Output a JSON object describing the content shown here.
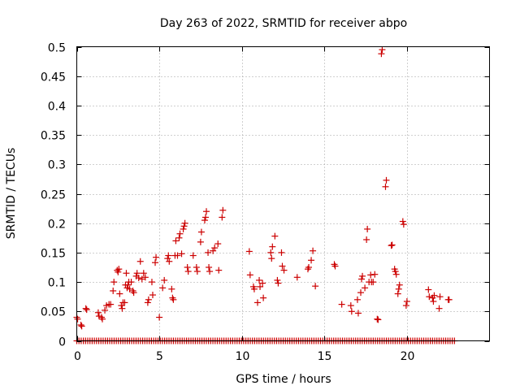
{
  "chart_data": {
    "type": "scatter",
    "title": "Day 263 of 2022, SRMTID for receiver abpo",
    "xlabel": "GPS time / hours",
    "ylabel": "SRMTID / TECUs",
    "xlim": [
      0,
      25
    ],
    "ylim": [
      0,
      0.5
    ],
    "grid": true,
    "marker": "+",
    "color": "#cc0000",
    "x_ticks": [
      0,
      5,
      10,
      15,
      20
    ],
    "x_tick_labels": [
      "0",
      "5",
      "10",
      "15",
      "20"
    ],
    "y_ticks": [
      0,
      0.05,
      0.1,
      0.15,
      0.2,
      0.25,
      0.3,
      0.35,
      0.4,
      0.45,
      0.5
    ],
    "y_tick_labels": [
      "0",
      "0.05",
      "0.1",
      "0.15",
      "0.2",
      "0.25",
      "0.3",
      "0.35",
      "0.4",
      "0.45",
      "0.5"
    ],
    "zero_baseline": {
      "x_start": 0.0,
      "x_end": 22.9,
      "step": 0.133,
      "y": 0
    },
    "points": [
      [
        0.0,
        0.04
      ],
      [
        0.05,
        0.037
      ],
      [
        0.25,
        0.027
      ],
      [
        0.3,
        0.025
      ],
      [
        0.55,
        0.055
      ],
      [
        0.6,
        0.053
      ],
      [
        1.3,
        0.048
      ],
      [
        1.35,
        0.042
      ],
      [
        1.5,
        0.04
      ],
      [
        1.55,
        0.037
      ],
      [
        1.7,
        0.052
      ],
      [
        1.8,
        0.06
      ],
      [
        1.95,
        0.062
      ],
      [
        2.05,
        0.062
      ],
      [
        2.2,
        0.085
      ],
      [
        2.25,
        0.1
      ],
      [
        2.45,
        0.12
      ],
      [
        2.5,
        0.117
      ],
      [
        2.55,
        0.122
      ],
      [
        2.6,
        0.08
      ],
      [
        2.7,
        0.06
      ],
      [
        2.75,
        0.055
      ],
      [
        2.8,
        0.065
      ],
      [
        2.9,
        0.065
      ],
      [
        2.95,
        0.095
      ],
      [
        3.0,
        0.115
      ],
      [
        3.05,
        0.09
      ],
      [
        3.1,
        0.095
      ],
      [
        3.15,
        0.1
      ],
      [
        3.2,
        0.088
      ],
      [
        3.3,
        0.1
      ],
      [
        3.4,
        0.085
      ],
      [
        3.45,
        0.082
      ],
      [
        3.6,
        0.11
      ],
      [
        3.65,
        0.115
      ],
      [
        3.75,
        0.107
      ],
      [
        3.85,
        0.135
      ],
      [
        3.95,
        0.105
      ],
      [
        4.05,
        0.115
      ],
      [
        4.15,
        0.108
      ],
      [
        4.3,
        0.065
      ],
      [
        4.35,
        0.07
      ],
      [
        4.55,
        0.1
      ],
      [
        4.6,
        0.078
      ],
      [
        4.75,
        0.133
      ],
      [
        4.8,
        0.142
      ],
      [
        5.0,
        0.04
      ],
      [
        5.2,
        0.09
      ],
      [
        5.3,
        0.103
      ],
      [
        5.5,
        0.14
      ],
      [
        5.55,
        0.145
      ],
      [
        5.6,
        0.135
      ],
      [
        5.75,
        0.088
      ],
      [
        5.8,
        0.073
      ],
      [
        5.85,
        0.07
      ],
      [
        5.95,
        0.145
      ],
      [
        6.0,
        0.17
      ],
      [
        6.1,
        0.145
      ],
      [
        6.2,
        0.175
      ],
      [
        6.25,
        0.182
      ],
      [
        6.35,
        0.148
      ],
      [
        6.45,
        0.19
      ],
      [
        6.5,
        0.195
      ],
      [
        6.55,
        0.2
      ],
      [
        6.7,
        0.125
      ],
      [
        6.75,
        0.118
      ],
      [
        7.05,
        0.145
      ],
      [
        7.25,
        0.125
      ],
      [
        7.3,
        0.118
      ],
      [
        7.5,
        0.168
      ],
      [
        7.55,
        0.185
      ],
      [
        7.75,
        0.205
      ],
      [
        7.8,
        0.21
      ],
      [
        7.85,
        0.22
      ],
      [
        7.95,
        0.15
      ],
      [
        8.0,
        0.125
      ],
      [
        8.05,
        0.118
      ],
      [
        8.25,
        0.153
      ],
      [
        8.35,
        0.158
      ],
      [
        8.55,
        0.165
      ],
      [
        8.6,
        0.12
      ],
      [
        8.8,
        0.21
      ],
      [
        8.85,
        0.222
      ],
      [
        10.45,
        0.152
      ],
      [
        10.5,
        0.112
      ],
      [
        10.7,
        0.092
      ],
      [
        10.75,
        0.088
      ],
      [
        10.95,
        0.065
      ],
      [
        11.05,
        0.103
      ],
      [
        11.1,
        0.092
      ],
      [
        11.25,
        0.098
      ],
      [
        11.3,
        0.073
      ],
      [
        11.75,
        0.15
      ],
      [
        11.8,
        0.14
      ],
      [
        11.85,
        0.16
      ],
      [
        12.0,
        0.178
      ],
      [
        12.15,
        0.103
      ],
      [
        12.2,
        0.098
      ],
      [
        12.4,
        0.15
      ],
      [
        12.45,
        0.127
      ],
      [
        12.55,
        0.12
      ],
      [
        13.35,
        0.108
      ],
      [
        14.0,
        0.122
      ],
      [
        14.05,
        0.125
      ],
      [
        14.2,
        0.137
      ],
      [
        14.3,
        0.153
      ],
      [
        14.45,
        0.093
      ],
      [
        15.6,
        0.13
      ],
      [
        15.65,
        0.127
      ],
      [
        16.05,
        0.062
      ],
      [
        16.6,
        0.06
      ],
      [
        16.65,
        0.05
      ],
      [
        17.0,
        0.07
      ],
      [
        17.05,
        0.047
      ],
      [
        17.2,
        0.082
      ],
      [
        17.25,
        0.105
      ],
      [
        17.3,
        0.11
      ],
      [
        17.45,
        0.09
      ],
      [
        17.55,
        0.172
      ],
      [
        17.6,
        0.19
      ],
      [
        17.7,
        0.1
      ],
      [
        17.8,
        0.112
      ],
      [
        17.85,
        0.1
      ],
      [
        17.95,
        0.1
      ],
      [
        18.05,
        0.113
      ],
      [
        18.2,
        0.037
      ],
      [
        18.25,
        0.036
      ],
      [
        18.45,
        0.488
      ],
      [
        18.5,
        0.495
      ],
      [
        18.7,
        0.262
      ],
      [
        18.75,
        0.273
      ],
      [
        19.05,
        0.162
      ],
      [
        19.1,
        0.163
      ],
      [
        19.25,
        0.122
      ],
      [
        19.3,
        0.118
      ],
      [
        19.35,
        0.113
      ],
      [
        19.45,
        0.08
      ],
      [
        19.5,
        0.088
      ],
      [
        19.55,
        0.095
      ],
      [
        19.75,
        0.203
      ],
      [
        19.8,
        0.198
      ],
      [
        19.95,
        0.06
      ],
      [
        20.0,
        0.067
      ],
      [
        21.3,
        0.087
      ],
      [
        21.35,
        0.075
      ],
      [
        21.55,
        0.073
      ],
      [
        21.6,
        0.067
      ],
      [
        21.65,
        0.077
      ],
      [
        21.95,
        0.055
      ],
      [
        22.0,
        0.075
      ],
      [
        22.5,
        0.07
      ],
      [
        22.55,
        0.07
      ]
    ]
  }
}
